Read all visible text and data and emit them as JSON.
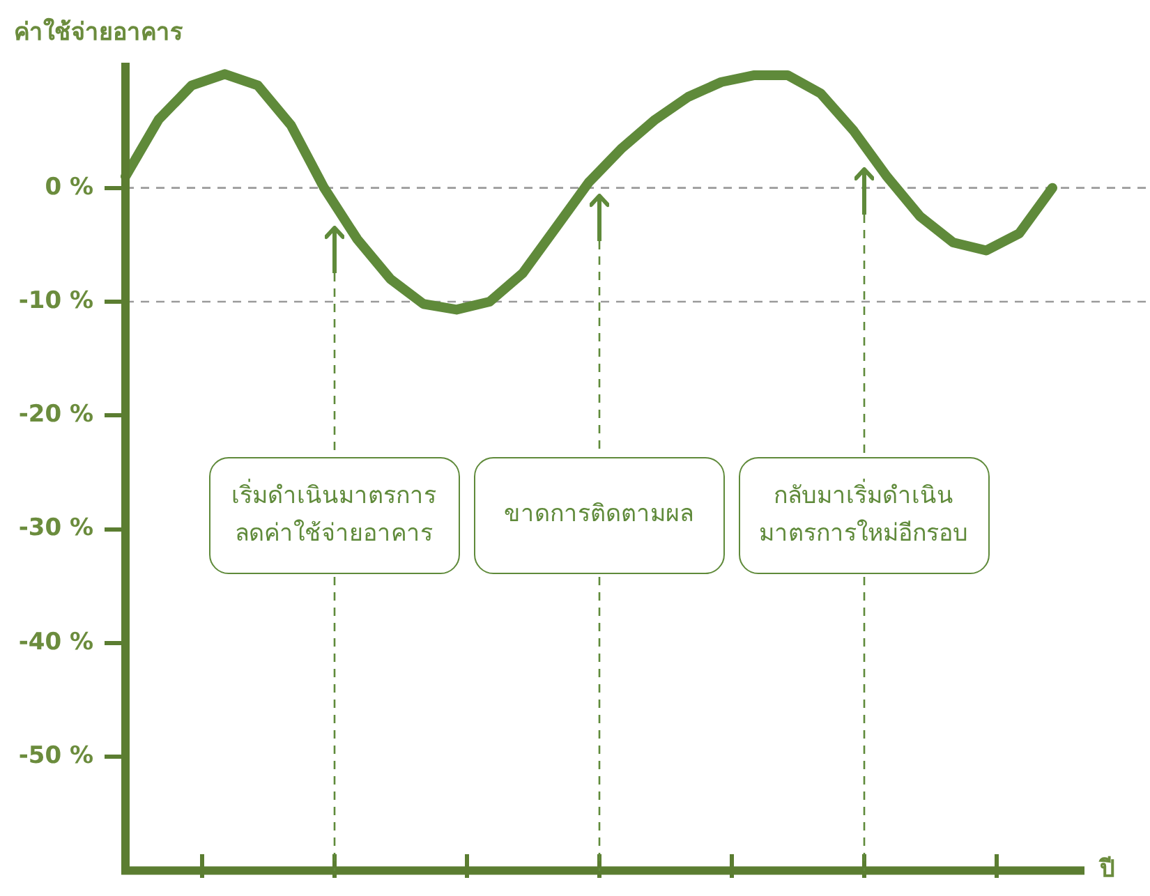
{
  "chart_data": {
    "type": "line",
    "ylabel": "ค่าใช้จ่ายอาคาร",
    "xlabel": "ปี",
    "categories": [
      null,
      null,
      null,
      null,
      null,
      null,
      null,
      null,
      null,
      null,
      null,
      null,
      null,
      null,
      null,
      null,
      null,
      null,
      null,
      null,
      null,
      null,
      null,
      null,
      null,
      null,
      null,
      null,
      null
    ],
    "series": [
      {
        "color": "#5f8a3a",
        "values": [
          1,
          6,
          9,
          10,
          9,
          5.5,
          0,
          -4.5,
          -8,
          -10.2,
          -10.7,
          -10,
          -7.5,
          -3.5,
          0.5,
          3.5,
          6,
          8,
          9.3,
          9.9,
          9.9,
          8.3,
          5,
          1,
          -2.5,
          -4.8,
          -5.5,
          -4,
          0
        ]
      }
    ],
    "ylim": [
      -60,
      11
    ],
    "yticks": [
      {
        "value": 0,
        "label": "0 %"
      },
      {
        "value": -10,
        "label": "-10 %"
      },
      {
        "value": -20,
        "label": "-20 %"
      },
      {
        "value": -30,
        "label": "-30 %"
      },
      {
        "value": -40,
        "label": "-40 %"
      },
      {
        "value": -50,
        "label": "-50 %"
      }
    ],
    "ref_lines": [
      {
        "axis": "y",
        "value": 0,
        "color": "#9a9a9a",
        "line_style": "dashed"
      },
      {
        "axis": "y",
        "value": -10,
        "color": "#9a9a9a",
        "line_style": "dashed"
      }
    ],
    "annotations": [
      "เริ่มดำเนินมาตรการ\nลดค่าใช้จ่ายอาคาร",
      "ขาดการติดตามผล",
      "กลับมาเริ่มดำเนิน\nมาตรการใหม่อีกรอบ"
    ],
    "grid": false,
    "legend": false,
    "marker": "none",
    "line_style": "solid"
  }
}
